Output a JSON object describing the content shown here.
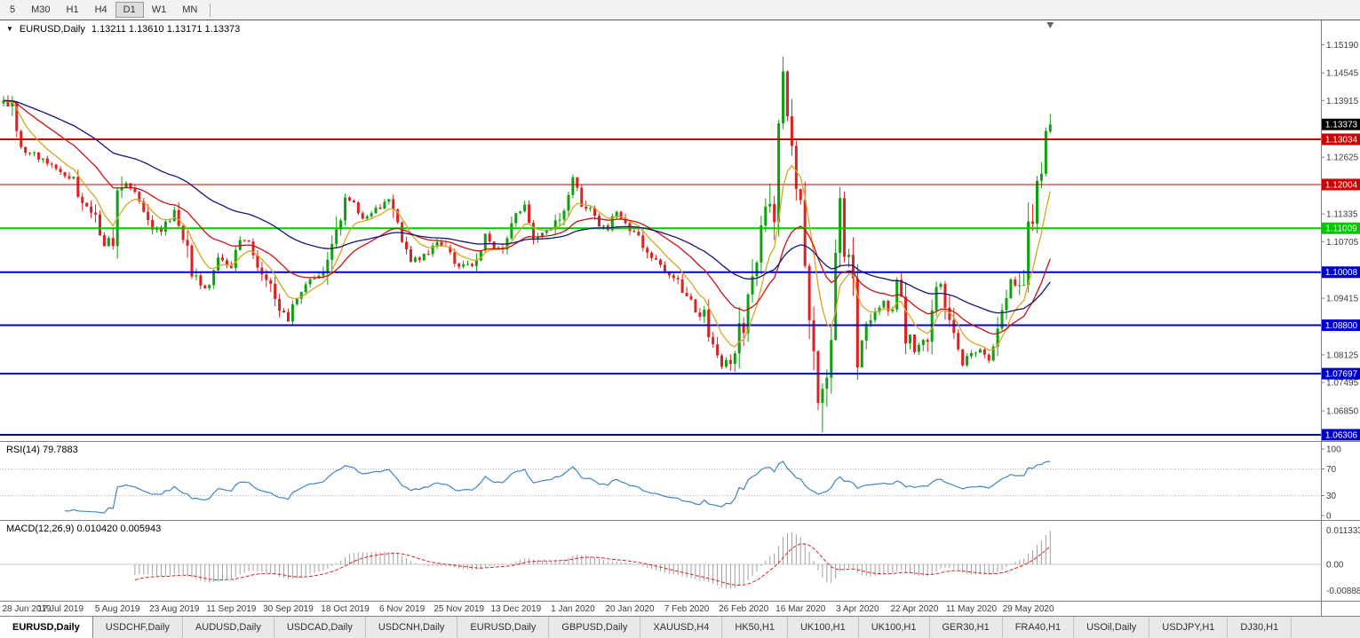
{
  "toolbar": {
    "timeframes": [
      "5",
      "M30",
      "H1",
      "H4",
      "D1",
      "W1",
      "MN"
    ],
    "active_timeframe": "D1"
  },
  "chart_header": {
    "expand_icon": "▼",
    "title": "EURUSD,Daily",
    "ohlc": "1.13211 1.13610 1.13171 1.13373"
  },
  "rsi": {
    "label": "RSI(14) 79.7883",
    "period": 14,
    "value": 79.7883,
    "levels": [
      "100",
      "70",
      "30",
      "0"
    ],
    "level_values": [
      100,
      70,
      30,
      0
    ],
    "color": "#3f84c4"
  },
  "macd": {
    "label": "MACD(12,26,9) 0.010420 0.005943",
    "macd_value": 0.01042,
    "signal_value": 0.005943,
    "axis_labels": [
      "0.0113337",
      "0.00",
      "-0.0088848"
    ],
    "histogram_color": "#a0a0a0",
    "signal_color": "#e02020"
  },
  "tabs": {
    "active_index": 0,
    "items": [
      "EURUSD,Daily",
      "USDCHF,Daily",
      "AUDUSD,Daily",
      "USDCAD,Daily",
      "USDCNH,Daily",
      "EURUSD,Daily",
      "GBPUSD,Daily",
      "XAUUSD,H4",
      "HK50,H1",
      "UK100,H1",
      "UK100,H1",
      "GER30,H1",
      "FRA40,H1",
      "USOil,Daily",
      "USDJPY,H1",
      "DJ30,H1"
    ]
  },
  "chart_data": {
    "type": "candlestick",
    "symbol": "EURUSD",
    "timeframe": "Daily",
    "last_candle": {
      "open": 1.13211,
      "high": 1.1361,
      "low": 1.13171,
      "close": 1.13373
    },
    "current_price": {
      "label": "1.13373",
      "value": 1.13373,
      "color": "#000000"
    },
    "x_labels": [
      "28 Jun 2019",
      "17 Jul 2019",
      "5 Aug 2019",
      "23 Aug 2019",
      "11 Sep 2019",
      "30 Sep 2019",
      "18 Oct 2019",
      "6 Nov 2019",
      "25 Nov 2019",
      "13 Dec 2019",
      "1 Jan 2020",
      "20 Jan 2020",
      "7 Feb 2020",
      "26 Feb 2020",
      "16 Mar 2020",
      "3 Apr 2020",
      "22 Apr 2020",
      "11 May 2020",
      "29 May 2020"
    ],
    "bars_per_label": 13,
    "y_ticks": [
      "1.15190",
      "1.14545",
      "1.13915",
      "1.12625",
      "1.11335",
      "1.10705",
      "1.09415",
      "1.08125",
      "1.07495",
      "1.06850"
    ],
    "y_range": [
      1.056,
      1.156
    ],
    "hlines": [
      {
        "label": "1.13034",
        "value": 1.13034,
        "color": "#d00000",
        "w": 2
      },
      {
        "label": "1.12004",
        "value": 1.12004,
        "color": "#d00000",
        "w": 1
      },
      {
        "label": "1.11009",
        "value": 1.11009,
        "color": "#00c800",
        "w": 2
      },
      {
        "label": "1.10008",
        "value": 1.10008,
        "color": "#0000cd",
        "w": 2
      },
      {
        "label": "1.08800",
        "value": 1.088,
        "color": "#0000cd",
        "w": 2
      },
      {
        "label": "1.07697",
        "value": 1.07697,
        "color": "#0000cd",
        "w": 2
      },
      {
        "label": "1.06306",
        "value": 1.06306,
        "color": "#0000cd",
        "w": 2
      }
    ],
    "moving_averages": [
      {
        "name": "fast",
        "period": 8,
        "color": "#d9a520"
      },
      {
        "name": "medium",
        "period": 24,
        "color": "#cc1111"
      },
      {
        "name": "slow",
        "period": 55,
        "color": "#14147a"
      }
    ],
    "colors": {
      "bull": "#0fa00f",
      "bear": "#dd2020",
      "axis_text": "#3c3c3c",
      "grid": "#808080"
    },
    "bar_count": 240,
    "price_path": [
      [
        0,
        1.1385
      ],
      [
        2,
        1.1368
      ],
      [
        4,
        1.1286
      ],
      [
        7,
        1.1268
      ],
      [
        10,
        1.1248
      ],
      [
        13,
        1.1227
      ],
      [
        16,
        1.1205
      ],
      [
        18,
        1.115
      ],
      [
        21,
        1.112
      ],
      [
        23,
        1.1055
      ],
      [
        25,
        1.1085
      ],
      [
        26,
        1.12
      ],
      [
        28,
        1.1208
      ],
      [
        31,
        1.117
      ],
      [
        34,
        1.11
      ],
      [
        36,
        1.1092
      ],
      [
        39,
        1.114
      ],
      [
        41,
        1.108
      ],
      [
        43,
        1.0992
      ],
      [
        45,
        1.0972
      ],
      [
        47,
        1.0962
      ],
      [
        49,
        1.103
      ],
      [
        52,
        1.101
      ],
      [
        54,
        1.1073
      ],
      [
        56,
        1.1062
      ],
      [
        58,
        1.1017
      ],
      [
        60,
        1.0992
      ],
      [
        62,
        1.0942
      ],
      [
        64,
        1.0905
      ],
      [
        65,
        1.089
      ],
      [
        66,
        1.093
      ],
      [
        68,
        1.0962
      ],
      [
        70,
        1.0982
      ],
      [
        72,
        1.0992
      ],
      [
        74,
        1.1032
      ],
      [
        76,
        1.1102
      ],
      [
        78,
        1.117
      ],
      [
        80,
        1.1152
      ],
      [
        82,
        1.1116
      ],
      [
        84,
        1.1132
      ],
      [
        86,
        1.1152
      ],
      [
        88,
        1.1162
      ],
      [
        90,
        1.1102
      ],
      [
        91,
        1.1072
      ],
      [
        93,
        1.1032
      ],
      [
        95,
        1.1022
      ],
      [
        97,
        1.1052
      ],
      [
        99,
        1.1072
      ],
      [
        101,
        1.1062
      ],
      [
        103,
        1.1022
      ],
      [
        105,
        1.1012
      ],
      [
        108,
        1.1022
      ],
      [
        110,
        1.1082
      ],
      [
        112,
        1.1052
      ],
      [
        114,
        1.1062
      ],
      [
        117,
        1.1122
      ],
      [
        119,
        1.1152
      ],
      [
        121,
        1.1082
      ],
      [
        123,
        1.1088
      ],
      [
        125,
        1.1092
      ],
      [
        127,
        1.1122
      ],
      [
        129,
        1.1182
      ],
      [
        130,
        1.1212
      ],
      [
        132,
        1.1162
      ],
      [
        134,
        1.1142
      ],
      [
        136,
        1.1112
      ],
      [
        138,
        1.1102
      ],
      [
        140,
        1.1142
      ],
      [
        143,
        1.1095
      ],
      [
        145,
        1.1082
      ],
      [
        147,
        1.1042
      ],
      [
        149,
        1.1022
      ],
      [
        151,
        1.1002
      ],
      [
        153,
        1.0992
      ],
      [
        156,
        1.0946
      ],
      [
        158,
        1.0916
      ],
      [
        160,
        1.0902
      ],
      [
        162,
        1.0832
      ],
      [
        164,
        1.079
      ],
      [
        166,
        1.0802
      ],
      [
        168,
        1.0862
      ],
      [
        169,
        1.0882
      ],
      [
        170,
        1.0962
      ],
      [
        172,
        1.1032
      ],
      [
        174,
        1.1132
      ],
      [
        176,
        1.1142
      ],
      [
        177,
        1.1302
      ],
      [
        178,
        1.145
      ],
      [
        179,
        1.1332
      ],
      [
        180,
        1.1282
      ],
      [
        181,
        1.1184
      ],
      [
        182,
        1.118
      ],
      [
        183,
        1.0995
      ],
      [
        184,
        1.0915
      ],
      [
        185,
        1.08
      ],
      [
        186,
        1.0692
      ],
      [
        187,
        1.0724
      ],
      [
        188,
        1.0787
      ],
      [
        189,
        1.0883
      ],
      [
        190,
        1.103
      ],
      [
        191,
        1.114
      ],
      [
        192,
        1.1048
      ],
      [
        193,
        1.1031
      ],
      [
        194,
        1.0961
      ],
      [
        195,
        1.0808
      ],
      [
        197,
        1.0892
      ],
      [
        199,
        1.0902
      ],
      [
        201,
        1.0935
      ],
      [
        203,
        1.0912
      ],
      [
        204,
        1.098
      ],
      [
        205,
        1.0932
      ],
      [
        206,
        1.0862
      ],
      [
        208,
        1.0822
      ],
      [
        210,
        1.0842
      ],
      [
        211,
        1.0822
      ],
      [
        213,
        1.0955
      ],
      [
        214,
        1.098
      ],
      [
        215,
        1.0912
      ],
      [
        216,
        1.0902
      ],
      [
        217,
        1.0842
      ],
      [
        219,
        1.0795
      ],
      [
        221,
        1.0812
      ],
      [
        223,
        1.0822
      ],
      [
        225,
        1.0795
      ],
      [
        227,
        1.0852
      ],
      [
        228,
        1.0915
      ],
      [
        230,
        1.098
      ],
      [
        232,
        1.0952
      ],
      [
        233,
        1.0983
      ],
      [
        234,
        1.1101
      ],
      [
        235,
        1.1135
      ],
      [
        236,
        1.117
      ],
      [
        237,
        1.1234
      ],
      [
        238,
        1.132
      ],
      [
        239,
        1.1337
      ]
    ],
    "key_candles": {
      "0": {
        "h": 1.1402
      },
      "178": {
        "h": 1.1492
      },
      "187": {
        "l": 1.0636
      },
      "239": {
        "o": 1.13211,
        "h": 1.1361,
        "l": 1.13171,
        "c": 1.13373
      }
    }
  }
}
